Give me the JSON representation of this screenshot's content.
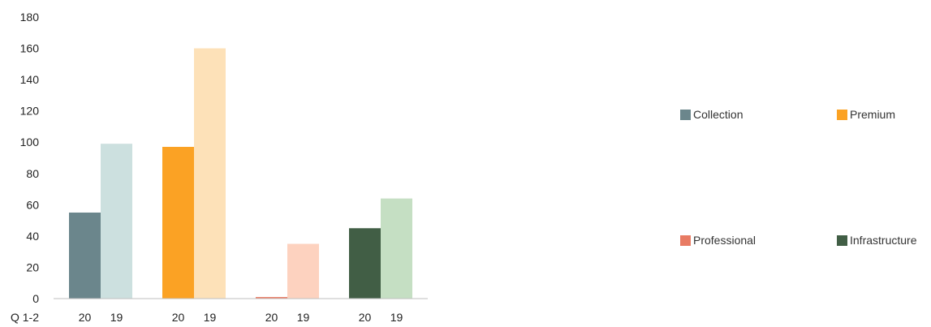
{
  "chart_data": {
    "type": "bar",
    "corner_label": "Q 1-2",
    "ylim": [
      0,
      180
    ],
    "yticks": [
      0,
      20,
      40,
      60,
      80,
      100,
      120,
      140,
      160,
      180
    ],
    "groups": [
      {
        "name": "Collection",
        "color": "#6b868c",
        "light_color": "#cce0df",
        "bars": [
          {
            "label": "20",
            "value": 55
          },
          {
            "label": "19",
            "value": 99
          }
        ]
      },
      {
        "name": "Premium",
        "color": "#fba224",
        "light_color": "#fde1b8",
        "bars": [
          {
            "label": "20",
            "value": 97
          },
          {
            "label": "19",
            "value": 160
          }
        ]
      },
      {
        "name": "Professional",
        "color": "#e87b63",
        "light_color": "#fdd2bf",
        "bars": [
          {
            "label": "20",
            "value": 1
          },
          {
            "label": "19",
            "value": 35
          }
        ]
      },
      {
        "name": "Infrastructure",
        "color": "#415e45",
        "light_color": "#c5dfc3",
        "bars": [
          {
            "label": "20",
            "value": 45
          },
          {
            "label": "19",
            "value": 64
          }
        ]
      }
    ],
    "legend_position": "right"
  },
  "legend": {
    "collection": "Collection",
    "premium": "Premium",
    "professional": "Professional",
    "infrastructure": "Infrastructure"
  }
}
